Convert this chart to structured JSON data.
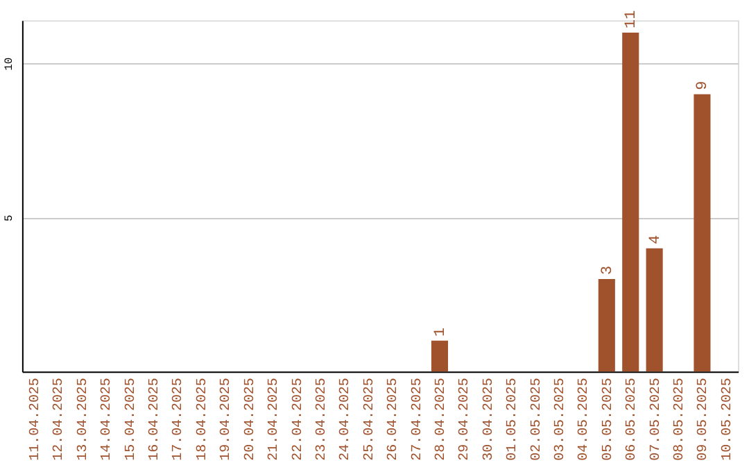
{
  "chart_data": {
    "type": "bar",
    "categories": [
      "11.04.2025",
      "12.04.2025",
      "13.04.2025",
      "14.04.2025",
      "15.04.2025",
      "16.04.2025",
      "17.04.2025",
      "18.04.2025",
      "19.04.2025",
      "20.04.2025",
      "21.04.2025",
      "22.04.2025",
      "23.04.2025",
      "24.04.2025",
      "25.04.2025",
      "26.04.2025",
      "27.04.2025",
      "28.04.2025",
      "29.04.2025",
      "30.04.2025",
      "01.05.2025",
      "02.05.2025",
      "03.05.2025",
      "04.05.2025",
      "05.05.2025",
      "06.05.2025",
      "07.05.2025",
      "08.05.2025",
      "09.05.2025",
      "10.05.2025"
    ],
    "values": [
      0,
      0,
      0,
      0,
      0,
      0,
      0,
      0,
      0,
      0,
      0,
      0,
      0,
      0,
      0,
      0,
      0,
      1,
      0,
      0,
      0,
      0,
      0,
      0,
      3,
      11,
      4,
      0,
      9,
      0
    ],
    "value_labels": [
      null,
      null,
      null,
      null,
      null,
      null,
      null,
      null,
      null,
      null,
      null,
      null,
      null,
      null,
      null,
      null,
      null,
      "1",
      null,
      null,
      null,
      null,
      null,
      null,
      "3",
      "11",
      "4",
      null,
      "9",
      null
    ],
    "color": "#a0522d",
    "ylim": [
      0,
      11.4
    ],
    "yticks": [
      5,
      10
    ],
    "grid": "y"
  }
}
